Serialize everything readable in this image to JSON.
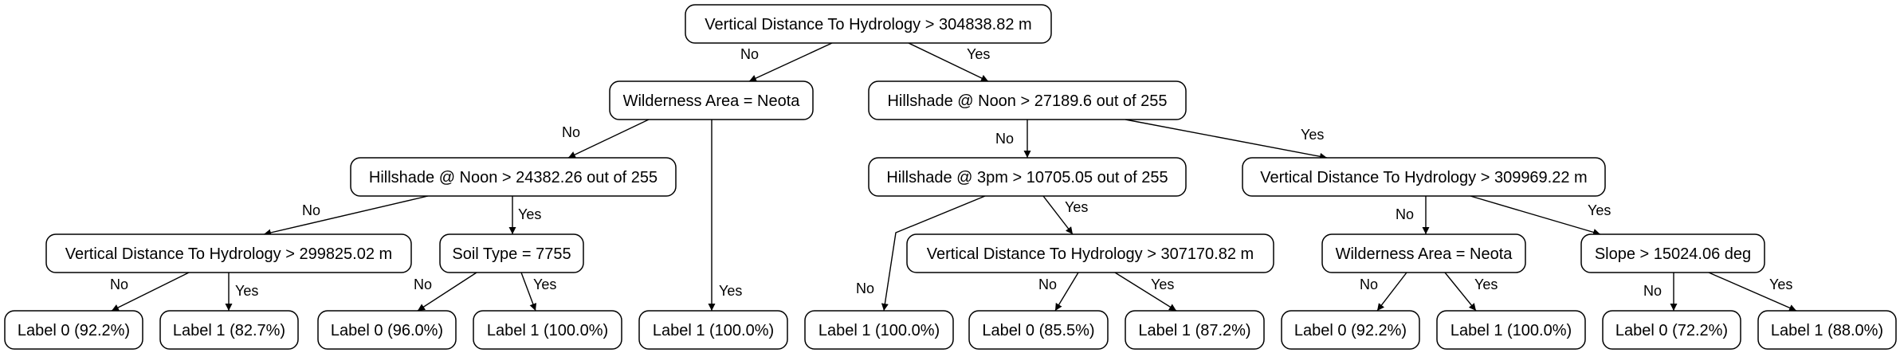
{
  "edge_labels": {
    "no": "No",
    "yes": "Yes"
  },
  "nodes": {
    "n_root": "Vertical Distance To Hydrology > 304838.82 m",
    "n_wild1": "Wilderness Area = Neota",
    "n_hill_noon1": "Hillshade @ Noon > 27189.6 out of 255",
    "n_hill_noon2": "Hillshade @ Noon > 24382.26 out of 255",
    "n_hill_3pm": "Hillshade @ 3pm > 10705.05 out of 255",
    "n_vdh_309": "Vertical Distance To Hydrology > 309969.22 m",
    "n_vdh_299": "Vertical Distance To Hydrology > 299825.02 m",
    "n_soil": "Soil Type = 7755",
    "n_vdh_307": "Vertical Distance To Hydrology > 307170.82 m",
    "n_wild2": "Wilderness Area = Neota",
    "n_slope": "Slope > 15024.06 deg",
    "leaf_1": "Label 0 (92.2%)",
    "leaf_2": "Label 1 (82.7%)",
    "leaf_3": "Label 0 (96.0%)",
    "leaf_4": "Label 1 (100.0%)",
    "leaf_5": "Label 1 (100.0%)",
    "leaf_6": "Label 1 (100.0%)",
    "leaf_7": "Label 0 (85.5%)",
    "leaf_8": "Label 1 (87.2%)",
    "leaf_9": "Label 0 (92.2%)",
    "leaf_10": "Label 1 (100.0%)",
    "leaf_11": "Label 0 (72.2%)",
    "leaf_12": "Label 1 (88.0%)"
  },
  "edges": [
    {
      "from": "n_root",
      "to": "n_wild1",
      "label": "no"
    },
    {
      "from": "n_root",
      "to": "n_hill_noon1",
      "label": "yes"
    },
    {
      "from": "n_wild1",
      "to": "n_hill_noon2",
      "label": "no"
    },
    {
      "from": "n_wild1",
      "to": "leaf_5",
      "label": "yes"
    },
    {
      "from": "n_hill_noon1",
      "to": "n_hill_3pm",
      "label": "no"
    },
    {
      "from": "n_hill_noon1",
      "to": "n_vdh_309",
      "label": "yes"
    },
    {
      "from": "n_hill_noon2",
      "to": "n_vdh_299",
      "label": "no"
    },
    {
      "from": "n_hill_noon2",
      "to": "n_soil",
      "label": "yes"
    },
    {
      "from": "n_hill_3pm",
      "to": "leaf_6",
      "label": "no"
    },
    {
      "from": "n_hill_3pm",
      "to": "n_vdh_307",
      "label": "yes"
    },
    {
      "from": "n_vdh_309",
      "to": "n_wild2",
      "label": "no"
    },
    {
      "from": "n_vdh_309",
      "to": "n_slope",
      "label": "yes"
    },
    {
      "from": "n_vdh_299",
      "to": "leaf_1",
      "label": "no"
    },
    {
      "from": "n_vdh_299",
      "to": "leaf_2",
      "label": "yes"
    },
    {
      "from": "n_soil",
      "to": "leaf_3",
      "label": "no"
    },
    {
      "from": "n_soil",
      "to": "leaf_4",
      "label": "yes"
    },
    {
      "from": "n_vdh_307",
      "to": "leaf_7",
      "label": "no"
    },
    {
      "from": "n_vdh_307",
      "to": "leaf_8",
      "label": "yes"
    },
    {
      "from": "n_wild2",
      "to": "leaf_9",
      "label": "no"
    },
    {
      "from": "n_wild2",
      "to": "leaf_10",
      "label": "yes"
    },
    {
      "from": "n_slope",
      "to": "leaf_11",
      "label": "no"
    },
    {
      "from": "n_slope",
      "to": "leaf_12",
      "label": "yes"
    }
  ]
}
